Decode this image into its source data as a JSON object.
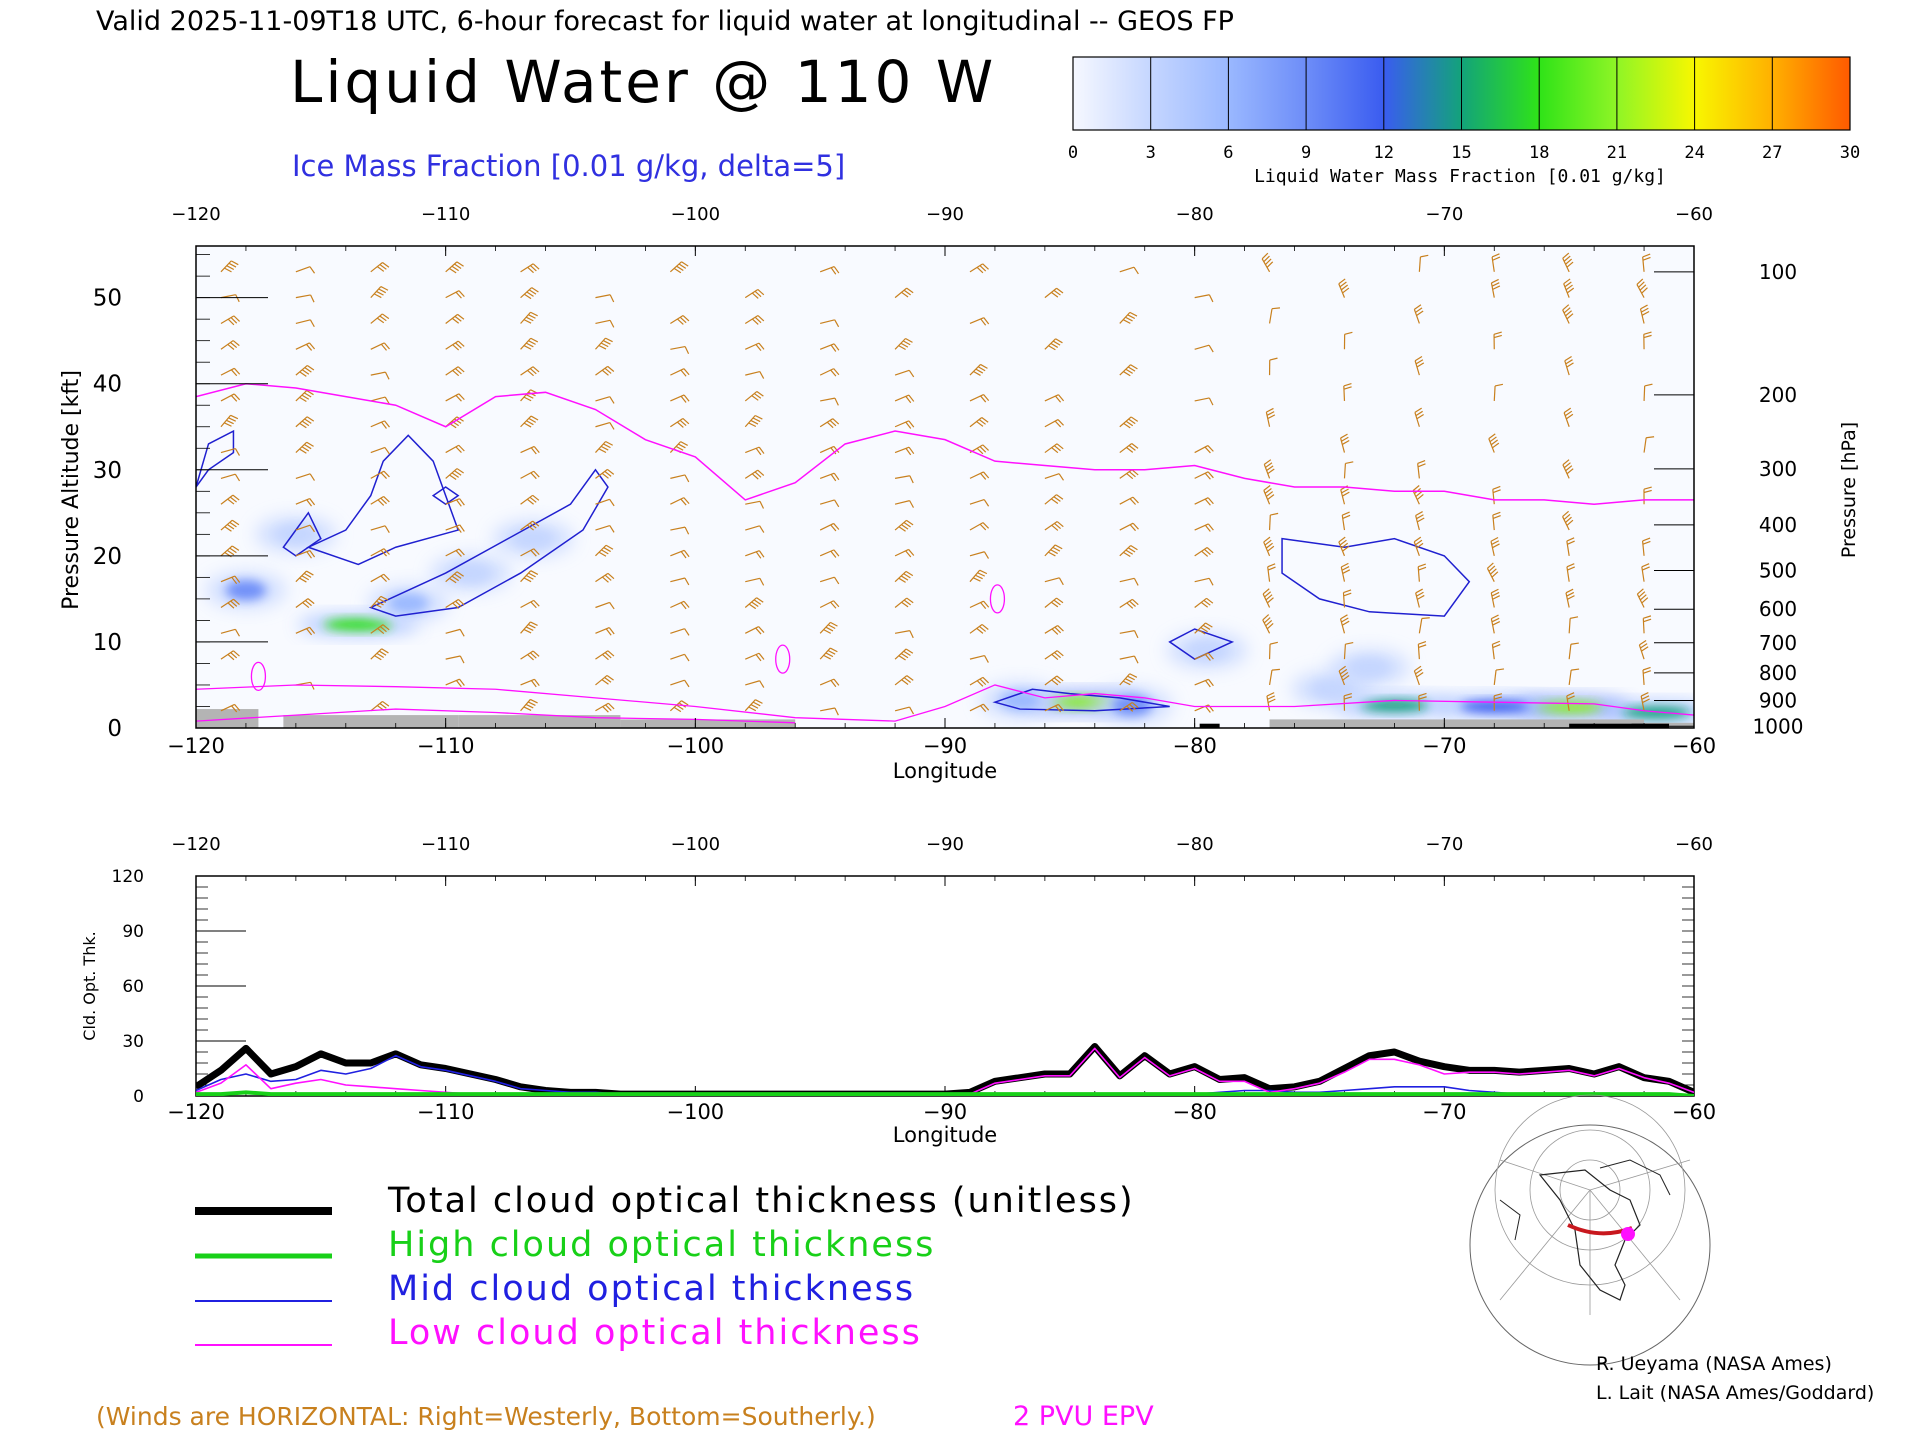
{
  "header": {
    "valid_line": "Valid 2025-11-09T18 UTC, 6-hour forecast for liquid water at longitudinal -- GEOS FP",
    "main_title": "Liquid Water @ 110 W",
    "ice_label": "Ice Mass Fraction [0.01 g/kg, delta=5]"
  },
  "colorbar": {
    "label": "Liquid Water Mass Fraction [0.01 g/kg]",
    "ticks": [
      "0",
      "3",
      "6",
      "9",
      "12",
      "15",
      "18",
      "21",
      "24",
      "27",
      "30"
    ],
    "colors": [
      "#f6f8ff",
      "#c5d6ff",
      "#9ab8ff",
      "#6d8df8",
      "#3a5cf0",
      "#13a37a",
      "#2fe318",
      "#8ff526",
      "#f8f700",
      "#ffb000",
      "#ff5a00"
    ]
  },
  "colors": {
    "wind_barb": "#c8801e",
    "ice_contour": "#2020d0",
    "epv_line": "#ff10ff",
    "ground": "#b4b4b4",
    "total_line": "#000000",
    "high_line": "#18d018",
    "mid_line": "#2020e0",
    "low_line": "#ff10ff"
  },
  "chart_data": [
    {
      "type": "heatmap",
      "xlabel": "Longitude",
      "ylabel_left": "Pressure Altitude [kft]",
      "ylabel_right": "Pressure [hPa]",
      "xlim": [
        -120,
        -60
      ],
      "ylim": [
        0,
        56
      ],
      "x_ticks": [
        "-120",
        "-110",
        "-100",
        "-90",
        "-80",
        "-70",
        "-60"
      ],
      "y_ticks_left": [
        "0",
        "10",
        "20",
        "30",
        "40",
        "50"
      ],
      "pressure_ticks": [
        {
          "label": "100",
          "kft": 53.0
        },
        {
          "label": "200",
          "kft": 38.7
        },
        {
          "label": "300",
          "kft": 30.1
        },
        {
          "label": "400",
          "kft": 23.6
        },
        {
          "label": "500",
          "kft": 18.3
        },
        {
          "label": "600",
          "kft": 13.8
        },
        {
          "label": "700",
          "kft": 9.9
        },
        {
          "label": "800",
          "kft": 6.4
        },
        {
          "label": "900",
          "kft": 3.2
        },
        {
          "label": "1000",
          "kft": 0.2
        }
      ],
      "liquid_water_blobs": [
        {
          "lon": -113.5,
          "kft": 12.0,
          "value": 18
        },
        {
          "lon": -118.0,
          "kft": 16.0,
          "value": 9
        },
        {
          "lon": -116.0,
          "kft": 22.5,
          "value": 4
        },
        {
          "lon": -111.5,
          "kft": 14.5,
          "value": 5
        },
        {
          "lon": -109.0,
          "kft": 18.0,
          "value": 3
        },
        {
          "lon": -106.5,
          "kft": 22.0,
          "value": 3
        },
        {
          "lon": -84.5,
          "kft": 3.0,
          "value": 20
        },
        {
          "lon": -82.5,
          "kft": 2.6,
          "value": 10
        },
        {
          "lon": -87.0,
          "kft": 3.2,
          "value": 6
        },
        {
          "lon": -79.5,
          "kft": 9.0,
          "value": 4
        },
        {
          "lon": -72.0,
          "kft": 2.6,
          "value": 16
        },
        {
          "lon": -65.0,
          "kft": 2.4,
          "value": 22
        },
        {
          "lon": -61.5,
          "kft": 1.8,
          "value": 16
        },
        {
          "lon": -68.0,
          "kft": 2.5,
          "value": 13
        },
        {
          "lon": -74.5,
          "kft": 4.5,
          "value": 4
        },
        {
          "lon": -73.0,
          "kft": 7.0,
          "value": 3
        }
      ],
      "epv_2pvu": {
        "lon": [
          -120,
          -118,
          -116,
          -114,
          -112,
          -110,
          -108,
          -106,
          -104,
          -102,
          -100,
          -98,
          -96,
          -94,
          -92,
          -90,
          -88,
          -86,
          -84,
          -82,
          -80,
          -78,
          -76,
          -74,
          -72,
          -70,
          -68,
          -66,
          -64,
          -62,
          -60
        ],
        "kft": [
          38.5,
          40,
          39.5,
          38.5,
          37.5,
          35,
          38.5,
          39,
          37,
          33.5,
          31.5,
          26.5,
          28.5,
          33,
          34.5,
          33.5,
          31,
          30.5,
          30,
          30,
          30.5,
          29,
          28,
          28,
          27.5,
          27.5,
          26.5,
          26.5,
          26,
          26.5,
          26.5
        ]
      },
      "ice_contour_label": "Ice Mass Fraction [0.01 g/kg, delta=5]",
      "wind_note": "(Winds are HORIZONTAL: Right=Westerly, Bottom=Southerly.)",
      "epv_note": "2 PVU EPV"
    },
    {
      "type": "line",
      "xlabel": "Longitude",
      "ylabel": "Cld. Opt. Thk.",
      "xlim": [
        -120,
        -60
      ],
      "ylim": [
        0,
        120
      ],
      "x_ticks": [
        "-120",
        "-110",
        "-100",
        "-90",
        "-80",
        "-70",
        "-60"
      ],
      "y_ticks": [
        "0",
        "30",
        "60",
        "90",
        "120"
      ],
      "x": [
        -120,
        -119,
        -118,
        -117,
        -116,
        -115,
        -114,
        -113,
        -112,
        -111,
        -110,
        -109,
        -108,
        -107,
        -106,
        -105,
        -104,
        -103,
        -102,
        -100,
        -95,
        -90,
        -89,
        -88,
        -87,
        -86,
        -85,
        -84,
        -83,
        -82,
        -81,
        -80,
        -79,
        -78,
        -77,
        -76,
        -75,
        -74,
        -73,
        -72,
        -71,
        -70,
        -69,
        -68,
        -67,
        -66,
        -65,
        -64,
        -63,
        -62,
        -61,
        -60
      ],
      "series": [
        {
          "name": "Total cloud optical thickness (unitless)",
          "values": [
            5,
            14,
            26,
            12,
            16,
            23,
            18,
            18,
            23,
            17,
            15,
            12,
            9,
            5,
            3,
            2,
            2,
            1,
            1,
            1,
            1,
            1,
            2,
            8,
            10,
            12,
            12,
            27,
            11,
            22,
            12,
            16,
            9,
            10,
            4,
            5,
            8,
            15,
            22,
            24,
            19,
            16,
            14,
            14,
            13,
            14,
            15,
            12,
            16,
            10,
            8,
            2
          ]
        },
        {
          "name": "High cloud optical thickness",
          "values": [
            1,
            1,
            2,
            1,
            1,
            1,
            1,
            1,
            1,
            1,
            1,
            1,
            1,
            1,
            1,
            1,
            1,
            1,
            1,
            1,
            1,
            1,
            1,
            1,
            1,
            1,
            1,
            1,
            1,
            1,
            1,
            1,
            1,
            1,
            1,
            1,
            1,
            1,
            1,
            1,
            1,
            1,
            1,
            1,
            1,
            1,
            1,
            1,
            1,
            1,
            1,
            0
          ]
        },
        {
          "name": "Mid cloud optical thickness",
          "values": [
            3,
            9,
            12,
            8,
            9,
            14,
            12,
            15,
            22,
            16,
            14,
            11,
            8,
            4,
            3,
            2,
            2,
            1,
            1,
            1,
            1,
            1,
            1,
            1,
            1,
            1,
            1,
            1,
            1,
            1,
            1,
            1,
            2,
            3,
            3,
            2,
            2,
            3,
            4,
            5,
            5,
            5,
            3,
            2,
            1,
            1,
            1,
            1,
            1,
            1,
            1,
            0
          ]
        },
        {
          "name": "Low cloud optical thickness",
          "values": [
            2,
            7,
            17,
            4,
            7,
            9,
            6,
            5,
            4,
            3,
            2,
            1,
            1,
            1,
            1,
            1,
            1,
            1,
            1,
            1,
            1,
            1,
            1,
            7,
            9,
            11,
            11,
            26,
            10,
            21,
            11,
            15,
            8,
            8,
            2,
            4,
            7,
            13,
            20,
            20,
            17,
            12,
            13,
            13,
            12,
            13,
            14,
            11,
            15,
            10,
            7,
            2
          ]
        }
      ]
    }
  ],
  "legend": [
    {
      "text": "Total cloud optical thickness (unitless)",
      "color": "#000000"
    },
    {
      "text": "High cloud optical thickness",
      "color": "#18d018"
    },
    {
      "text": "Mid cloud optical thickness",
      "color": "#2020e0"
    },
    {
      "text": "Low cloud optical thickness",
      "color": "#ff10ff"
    }
  ],
  "credits": [
    "R. Ueyama (NASA Ames)",
    "L. Lait (NASA Ames/Goddard)"
  ],
  "map_icon": "north-america-polar-map-icon"
}
